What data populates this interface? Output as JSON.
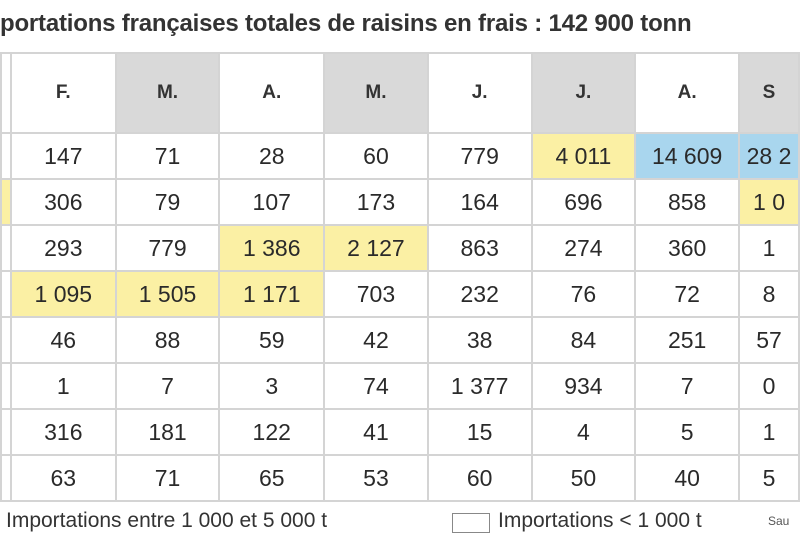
{
  "title": "portations françaises totales de raisins en frais : 142 900 tonn",
  "months": [
    "",
    "F.",
    "M.",
    "A.",
    "M.",
    "J.",
    "J.",
    "A.",
    "S"
  ],
  "rows": [
    {
      "cells": [
        "",
        "147",
        "71",
        "28",
        "60",
        "779",
        "4 011",
        "14 609",
        "28 2"
      ],
      "hl": [
        "",
        "",
        "",
        "",
        "",
        "",
        "y",
        "b",
        "b"
      ]
    },
    {
      "cells": [
        "",
        "306",
        "79",
        "107",
        "173",
        "164",
        "696",
        "858",
        "1 0"
      ],
      "hl": [
        "y",
        "",
        "",
        "",
        "",
        "",
        "",
        "",
        "y"
      ]
    },
    {
      "cells": [
        "",
        "293",
        "779",
        "1 386",
        "2 127",
        "863",
        "274",
        "360",
        "1"
      ],
      "hl": [
        "",
        "",
        "",
        "y",
        "y",
        "",
        "",
        "",
        ""
      ]
    },
    {
      "cells": [
        "",
        "1 095",
        "1 505",
        "1 171",
        "703",
        "232",
        "76",
        "72",
        "8"
      ],
      "hl": [
        "",
        "y",
        "y",
        "y",
        "",
        "",
        "",
        "",
        ""
      ]
    },
    {
      "cells": [
        "",
        "46",
        "88",
        "59",
        "42",
        "38",
        "84",
        "251",
        "57"
      ],
      "hl": [
        "",
        "",
        "",
        "",
        "",
        "",
        "",
        "",
        ""
      ]
    },
    {
      "cells": [
        "",
        "1",
        "7",
        "3",
        "74",
        "1 377",
        "934",
        "7",
        "0"
      ],
      "hl": [
        "",
        "",
        "",
        "",
        "",
        "",
        "",
        "",
        ""
      ]
    },
    {
      "cells": [
        "",
        "316",
        "181",
        "122",
        "41",
        "15",
        "4",
        "5",
        "1"
      ],
      "hl": [
        "",
        "",
        "",
        "",
        "",
        "",
        "",
        "",
        ""
      ]
    },
    {
      "cells": [
        "",
        "63",
        "71",
        "65",
        "53",
        "60",
        "50",
        "40",
        "5"
      ],
      "hl": [
        "",
        "",
        "",
        "",
        "",
        "",
        "",
        "",
        ""
      ]
    }
  ],
  "legend": {
    "range_label": "Importations entre 1 000 et 5 000 t",
    "low_label": "Importations < 1 000 t",
    "source_label": "Sau"
  },
  "colors": {
    "yellow": "#fbf0a4",
    "blue": "#a9d6ee",
    "header_shade": "#d9d9d9"
  }
}
